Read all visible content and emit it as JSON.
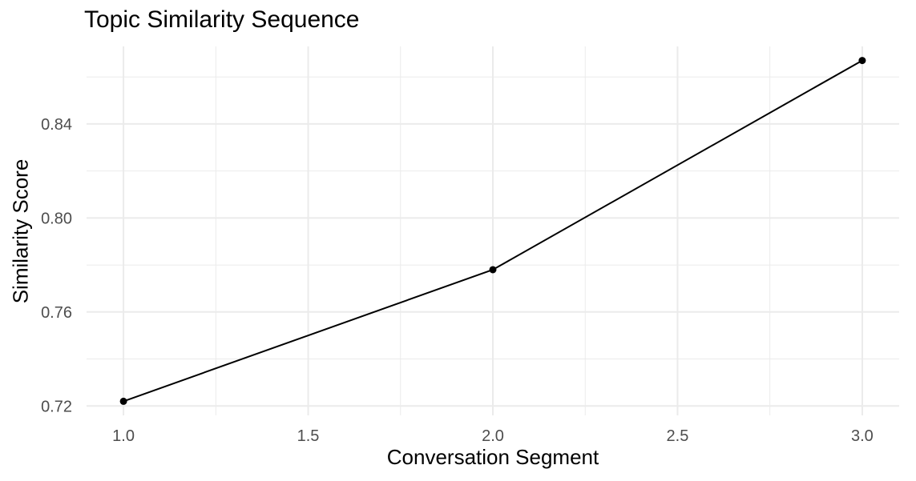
{
  "chart_data": {
    "type": "line",
    "title": "Topic Similarity Sequence",
    "xlabel": "Conversation Segment",
    "ylabel": "Similarity Score",
    "x": [
      1.0,
      2.0,
      3.0
    ],
    "series": [
      {
        "values": [
          0.722,
          0.778,
          0.867
        ]
      }
    ],
    "xlim": [
      0.9,
      3.1
    ],
    "ylim": [
      0.716,
      0.873
    ],
    "x_ticks": [
      1.0,
      1.5,
      2.0,
      2.5,
      3.0
    ],
    "x_tick_labels": [
      "1.0",
      "1.5",
      "2.0",
      "2.5",
      "3.0"
    ],
    "y_ticks": [
      0.72,
      0.76,
      0.8,
      0.84
    ],
    "y_tick_labels": [
      "0.72",
      "0.76",
      "0.80",
      "0.84"
    ],
    "x_minor_ticks": [
      1.25,
      1.75,
      2.25,
      2.75
    ],
    "y_minor_ticks": [
      0.74,
      0.78,
      0.82,
      0.86
    ],
    "grid": true,
    "legend": "none",
    "colors": {
      "line": "#000000",
      "point": "#000000",
      "grid": "#ebebeb",
      "tick_text": "#4d4d4d"
    }
  }
}
